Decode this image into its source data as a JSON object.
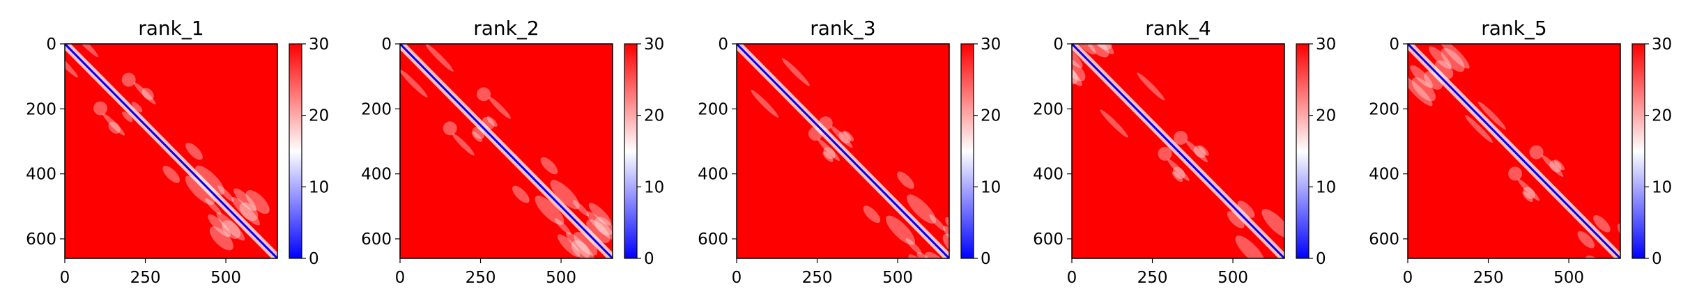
{
  "chart_data": [
    {
      "type": "heatmap",
      "title": "rank_1",
      "xlim": [
        0,
        660
      ],
      "ylim": [
        0,
        660
      ],
      "xticks": [
        0,
        250,
        500
      ],
      "yticks": [
        0,
        200,
        400,
        600
      ],
      "colorbar": {
        "min": 0,
        "max": 30,
        "ticks": [
          0,
          10,
          20,
          30
        ],
        "colormap": "bwr",
        "colors": [
          "#0000ff",
          "#ffffff",
          "#ff0000"
        ]
      },
      "values": "pairwise distance matrix, values near 0 along the diagonal, saturating at 30 away from it",
      "diagonal_value": 0
    },
    {
      "type": "heatmap",
      "title": "rank_2",
      "xlim": [
        0,
        660
      ],
      "ylim": [
        0,
        660
      ],
      "xticks": [
        0,
        250,
        500
      ],
      "yticks": [
        0,
        200,
        400,
        600
      ],
      "colorbar": {
        "min": 0,
        "max": 30,
        "ticks": [
          0,
          10,
          20,
          30
        ],
        "colormap": "bwr",
        "colors": [
          "#0000ff",
          "#ffffff",
          "#ff0000"
        ]
      },
      "diagonal_value": 0
    },
    {
      "type": "heatmap",
      "title": "rank_3",
      "xlim": [
        0,
        660
      ],
      "ylim": [
        0,
        660
      ],
      "xticks": [
        0,
        250,
        500
      ],
      "yticks": [
        0,
        200,
        400,
        600
      ],
      "colorbar": {
        "min": 0,
        "max": 30,
        "ticks": [
          0,
          10,
          20,
          30
        ],
        "colormap": "bwr",
        "colors": [
          "#0000ff",
          "#ffffff",
          "#ff0000"
        ]
      },
      "diagonal_value": 0
    },
    {
      "type": "heatmap",
      "title": "rank_4",
      "xlim": [
        0,
        660
      ],
      "ylim": [
        0,
        660
      ],
      "xticks": [
        0,
        250,
        500
      ],
      "yticks": [
        0,
        200,
        400,
        600
      ],
      "colorbar": {
        "min": 0,
        "max": 30,
        "ticks": [
          0,
          10,
          20,
          30
        ],
        "colormap": "bwr",
        "colors": [
          "#0000ff",
          "#ffffff",
          "#ff0000"
        ]
      },
      "diagonal_value": 0
    },
    {
      "type": "heatmap",
      "title": "rank_5",
      "xlim": [
        0,
        660
      ],
      "ylim": [
        0,
        660
      ],
      "xticks": [
        0,
        250,
        500
      ],
      "yticks": [
        0,
        200,
        400,
        600
      ],
      "colorbar": {
        "min": 0,
        "max": 30,
        "ticks": [
          0,
          10,
          20,
          30
        ],
        "colormap": "bwr",
        "colors": [
          "#0000ff",
          "#ffffff",
          "#ff0000"
        ]
      },
      "diagonal_value": 0
    }
  ]
}
